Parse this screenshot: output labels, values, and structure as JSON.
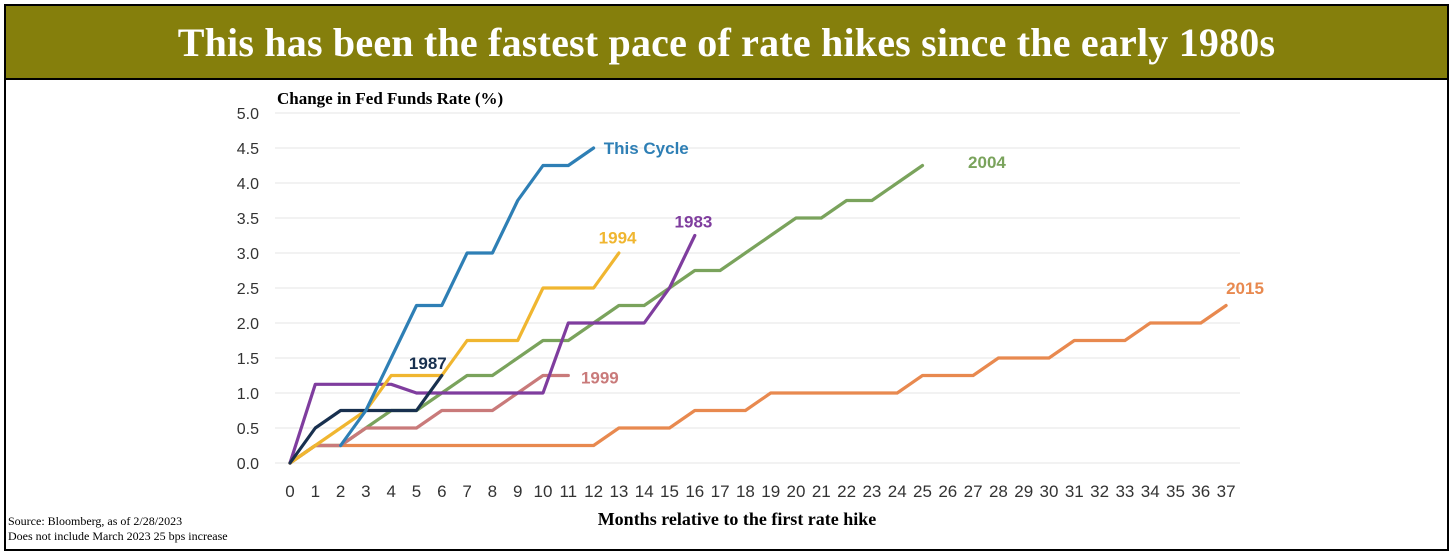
{
  "title": "This has been the fastest pace of rate hikes since the early 1980s",
  "footnotes": {
    "source": "Source: Bloomberg, as of 2/28/2023",
    "note": "Does not include March 2023 25 bps increase"
  },
  "chart_data": {
    "type": "line",
    "ylabel": "Change in Fed Funds Rate (%)",
    "xlabel": "Months relative to the first rate hike",
    "ylim": [
      0,
      5
    ],
    "xlim": [
      0,
      37
    ],
    "y_ticks": [
      "0.0",
      "0.5",
      "1.0",
      "1.5",
      "2.0",
      "2.5",
      "3.0",
      "3.5",
      "4.0",
      "4.5",
      "5.0"
    ],
    "x_ticks": [
      "0",
      "1",
      "2",
      "3",
      "4",
      "5",
      "6",
      "7",
      "8",
      "9",
      "10",
      "11",
      "12",
      "13",
      "14",
      "15",
      "16",
      "17",
      "18",
      "19",
      "20",
      "21",
      "22",
      "23",
      "24",
      "25",
      "26",
      "27",
      "28",
      "29",
      "30",
      "31",
      "32",
      "33",
      "34",
      "35",
      "36",
      "37"
    ],
    "grid": "horizontal",
    "series": [
      {
        "name": "2015",
        "color": "#e8894f",
        "label_pos": [
          37,
          2.5
        ],
        "x": [
          0,
          1,
          2,
          3,
          4,
          5,
          6,
          7,
          8,
          9,
          10,
          11,
          12,
          13,
          14,
          15,
          16,
          17,
          18,
          19,
          20,
          21,
          22,
          23,
          24,
          25,
          26,
          27,
          28,
          29,
          30,
          31,
          32,
          33,
          34,
          35,
          36,
          37
        ],
        "y": [
          0,
          0.25,
          0.25,
          0.25,
          0.25,
          0.25,
          0.25,
          0.25,
          0.25,
          0.25,
          0.25,
          0.25,
          0.25,
          0.5,
          0.5,
          0.5,
          0.75,
          0.75,
          0.75,
          1.0,
          1.0,
          1.0,
          1.0,
          1.0,
          1.0,
          1.25,
          1.25,
          1.25,
          1.5,
          1.5,
          1.5,
          1.75,
          1.75,
          1.75,
          2.0,
          2.0,
          2.0,
          2.25
        ]
      },
      {
        "name": "2004",
        "color": "#7aa35c",
        "label_pos": [
          26.8,
          4.3
        ],
        "x": [
          0,
          1,
          2,
          3,
          4,
          5,
          6,
          7,
          8,
          9,
          10,
          11,
          12,
          13,
          14,
          15,
          16,
          17,
          18,
          19,
          20,
          21,
          22,
          23,
          24,
          25
        ],
        "y": [
          0,
          0.25,
          0.25,
          0.5,
          0.75,
          0.75,
          1.0,
          1.25,
          1.25,
          1.5,
          1.75,
          1.75,
          2.0,
          2.25,
          2.25,
          2.5,
          2.75,
          2.75,
          3.0,
          3.25,
          3.5,
          3.5,
          3.75,
          3.75,
          4.0,
          4.25
        ]
      },
      {
        "name": "1999",
        "color": "#c97a7a",
        "label_pos": [
          11.5,
          1.22
        ],
        "x": [
          0,
          1,
          2,
          3,
          4,
          5,
          6,
          7,
          8,
          9,
          10,
          11
        ],
        "y": [
          0,
          0.25,
          0.25,
          0.5,
          0.5,
          0.5,
          0.75,
          0.75,
          0.75,
          1.0,
          1.25,
          1.25
        ]
      },
      {
        "name": "1983",
        "color": "#7f3d9e",
        "label_pos": [
          15.2,
          3.45
        ],
        "x": [
          0,
          1,
          2,
          3,
          4,
          5,
          6,
          7,
          8,
          9,
          10,
          11,
          12,
          13,
          14,
          15,
          16
        ],
        "y": [
          0,
          1.125,
          1.125,
          1.125,
          1.125,
          1.0,
          1.0,
          1.0,
          1.0,
          1.0,
          1.0,
          2.0,
          2.0,
          2.0,
          2.0,
          2.5,
          3.25
        ]
      },
      {
        "name": "1994",
        "color": "#f0b630",
        "label_pos": [
          12.2,
          3.22
        ],
        "x": [
          0,
          1,
          2,
          3,
          4,
          5,
          6,
          7,
          8,
          9,
          10,
          11,
          12,
          13
        ],
        "y": [
          0,
          0.25,
          0.5,
          0.75,
          1.25,
          1.25,
          1.25,
          1.75,
          1.75,
          1.75,
          2.5,
          2.5,
          2.5,
          3.0
        ]
      },
      {
        "name": "1987",
        "color": "#18304f",
        "label_pos": [
          4.7,
          1.43
        ],
        "x": [
          0,
          1,
          2,
          3,
          4,
          5,
          6
        ],
        "y": [
          0,
          0.5,
          0.75,
          0.75,
          0.75,
          0.75,
          1.25
        ]
      },
      {
        "name": "This Cycle",
        "color": "#2e7fb5",
        "label_pos": [
          12.4,
          4.5
        ],
        "x": [
          2,
          3,
          4,
          5,
          6,
          7,
          8,
          9,
          10,
          11,
          12
        ],
        "y": [
          0.25,
          0.75,
          1.5,
          2.25,
          2.25,
          3.0,
          3.0,
          3.75,
          4.25,
          4.25,
          4.5
        ]
      }
    ]
  }
}
